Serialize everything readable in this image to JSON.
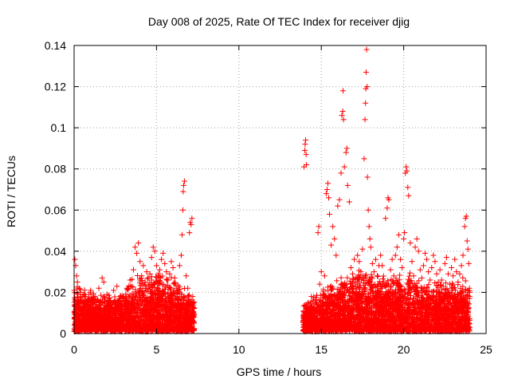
{
  "chart_data": {
    "type": "scatter",
    "title": "Day 008 of 2025, Rate Of TEC Index for receiver djig",
    "xlabel": "GPS time / hours",
    "ylabel": "ROTI / TECUs",
    "xlim": [
      0,
      25
    ],
    "ylim": [
      0,
      0.14
    ],
    "grid": true,
    "marker": "+",
    "color": "#ff0000",
    "x_ticks": [
      0,
      5,
      10,
      15,
      20,
      25
    ],
    "x_tick_labels": [
      "0",
      "5",
      "10",
      "15",
      "20",
      "25"
    ],
    "y_ticks": [
      0,
      0.02,
      0.04,
      0.06,
      0.08,
      0.1,
      0.12,
      0.14
    ],
    "y_tick_labels": [
      "0",
      "0.02",
      "0.04",
      "0.06",
      "0.08",
      "0.1",
      "0.12",
      "0.14"
    ],
    "series": [
      {
        "name": "ROTI",
        "points": [
          [
            0.05,
            0.036
          ],
          [
            0.1,
            0.033
          ],
          [
            0.15,
            0.028
          ],
          [
            0.2,
            0.025
          ],
          [
            0.3,
            0.022
          ],
          [
            0.4,
            0.02
          ],
          [
            0.5,
            0.018
          ],
          [
            0.6,
            0.016
          ],
          [
            0.7,
            0.014
          ],
          [
            0.8,
            0.015
          ],
          [
            0.9,
            0.019
          ],
          [
            1.0,
            0.021
          ],
          [
            1.2,
            0.017
          ],
          [
            1.4,
            0.013
          ],
          [
            1.5,
            0.022
          ],
          [
            1.7,
            0.027
          ],
          [
            1.8,
            0.025
          ],
          [
            2.0,
            0.019
          ],
          [
            2.2,
            0.016
          ],
          [
            2.4,
            0.021
          ],
          [
            2.6,
            0.023
          ],
          [
            2.8,
            0.018
          ],
          [
            3.0,
            0.017
          ],
          [
            3.2,
            0.022
          ],
          [
            3.4,
            0.026
          ],
          [
            3.6,
            0.031
          ],
          [
            3.7,
            0.042
          ],
          [
            3.8,
            0.039
          ],
          [
            3.9,
            0.044
          ],
          [
            4.0,
            0.035
          ],
          [
            4.1,
            0.028
          ],
          [
            4.2,
            0.033
          ],
          [
            4.3,
            0.025
          ],
          [
            4.4,
            0.03
          ],
          [
            4.5,
            0.027
          ],
          [
            4.6,
            0.029
          ],
          [
            4.7,
            0.037
          ],
          [
            4.8,
            0.042
          ],
          [
            4.9,
            0.04
          ],
          [
            5.0,
            0.033
          ],
          [
            5.1,
            0.028
          ],
          [
            5.2,
            0.031
          ],
          [
            5.3,
            0.036
          ],
          [
            5.4,
            0.039
          ],
          [
            5.5,
            0.034
          ],
          [
            5.6,
            0.03
          ],
          [
            5.7,
            0.026
          ],
          [
            5.8,
            0.029
          ],
          [
            5.9,
            0.035
          ],
          [
            6.0,
            0.032
          ],
          [
            6.1,
            0.027
          ],
          [
            6.2,
            0.022
          ],
          [
            6.3,
            0.02
          ],
          [
            6.4,
            0.033
          ],
          [
            6.5,
            0.038
          ],
          [
            6.55,
            0.048
          ],
          [
            6.6,
            0.06
          ],
          [
            6.62,
            0.069
          ],
          [
            6.65,
            0.072
          ],
          [
            6.7,
            0.074
          ],
          [
            6.8,
            0.028
          ],
          [
            6.9,
            0.022
          ],
          [
            7.0,
            0.049
          ],
          [
            7.05,
            0.054
          ],
          [
            7.1,
            0.053
          ],
          [
            7.15,
            0.056
          ],
          [
            7.2,
            0.018
          ],
          [
            0.2,
            0.006
          ],
          [
            0.5,
            0.004
          ],
          [
            0.8,
            0.008
          ],
          [
            1.1,
            0.005
          ],
          [
            1.4,
            0.007
          ],
          [
            1.7,
            0.004
          ],
          [
            2.0,
            0.006
          ],
          [
            2.3,
            0.009
          ],
          [
            2.6,
            0.005
          ],
          [
            2.9,
            0.007
          ],
          [
            3.2,
            0.006
          ],
          [
            3.5,
            0.008
          ],
          [
            3.8,
            0.01
          ],
          [
            4.1,
            0.007
          ],
          [
            4.4,
            0.009
          ],
          [
            4.7,
            0.012
          ],
          [
            5.0,
            0.01
          ],
          [
            5.3,
            0.008
          ],
          [
            5.6,
            0.011
          ],
          [
            5.9,
            0.013
          ],
          [
            6.2,
            0.009
          ],
          [
            6.5,
            0.012
          ],
          [
            6.8,
            0.007
          ],
          [
            7.1,
            0.006
          ],
          [
            13.9,
            0.006
          ],
          [
            13.95,
            0.081
          ],
          [
            14.0,
            0.089
          ],
          [
            14.02,
            0.092
          ],
          [
            14.05,
            0.094
          ],
          [
            14.08,
            0.087
          ],
          [
            14.1,
            0.082
          ],
          [
            14.2,
            0.015
          ],
          [
            14.4,
            0.018
          ],
          [
            14.6,
            0.012
          ],
          [
            14.8,
            0.049
          ],
          [
            14.85,
            0.052
          ],
          [
            14.9,
            0.024
          ],
          [
            15.0,
            0.03
          ],
          [
            15.2,
            0.028
          ],
          [
            15.3,
            0.068
          ],
          [
            15.35,
            0.07
          ],
          [
            15.4,
            0.073
          ],
          [
            15.45,
            0.066
          ],
          [
            15.5,
            0.058
          ],
          [
            15.6,
            0.043
          ],
          [
            15.7,
            0.052
          ],
          [
            15.8,
            0.046
          ],
          [
            15.9,
            0.038
          ],
          [
            16.0,
            0.062
          ],
          [
            16.1,
            0.065
          ],
          [
            16.2,
            0.078
          ],
          [
            16.25,
            0.106
          ],
          [
            16.3,
            0.108
          ],
          [
            16.32,
            0.118
          ],
          [
            16.35,
            0.104
          ],
          [
            16.4,
            0.081
          ],
          [
            16.5,
            0.088
          ],
          [
            16.55,
            0.09
          ],
          [
            16.6,
            0.072
          ],
          [
            16.7,
            0.064
          ],
          [
            16.8,
            0.032
          ],
          [
            16.9,
            0.029
          ],
          [
            17.0,
            0.036
          ],
          [
            17.1,
            0.022
          ],
          [
            17.2,
            0.038
          ],
          [
            17.3,
            0.035
          ],
          [
            17.4,
            0.03
          ],
          [
            17.5,
            0.041
          ],
          [
            17.6,
            0.085
          ],
          [
            17.65,
            0.104
          ],
          [
            17.68,
            0.112
          ],
          [
            17.7,
            0.119
          ],
          [
            17.72,
            0.127
          ],
          [
            17.75,
            0.138
          ],
          [
            17.78,
            0.12
          ],
          [
            17.8,
            0.076
          ],
          [
            17.85,
            0.06
          ],
          [
            17.9,
            0.052
          ],
          [
            17.95,
            0.046
          ],
          [
            18.0,
            0.042
          ],
          [
            18.1,
            0.034
          ],
          [
            18.2,
            0.03
          ],
          [
            18.3,
            0.036
          ],
          [
            18.4,
            0.028
          ],
          [
            18.5,
            0.033
          ],
          [
            18.6,
            0.038
          ],
          [
            18.7,
            0.033
          ],
          [
            18.8,
            0.025
          ],
          [
            18.9,
            0.056
          ],
          [
            19.0,
            0.061
          ],
          [
            19.05,
            0.066
          ],
          [
            19.1,
            0.065
          ],
          [
            19.2,
            0.031
          ],
          [
            19.3,
            0.036
          ],
          [
            19.4,
            0.028
          ],
          [
            19.5,
            0.038
          ],
          [
            19.6,
            0.042
          ],
          [
            19.7,
            0.048
          ],
          [
            19.8,
            0.036
          ],
          [
            19.9,
            0.032
          ],
          [
            20.0,
            0.046
          ],
          [
            20.05,
            0.049
          ],
          [
            20.1,
            0.078
          ],
          [
            20.15,
            0.081
          ],
          [
            20.2,
            0.079
          ],
          [
            20.25,
            0.071
          ],
          [
            20.3,
            0.067
          ],
          [
            20.4,
            0.044
          ],
          [
            20.5,
            0.035
          ],
          [
            20.6,
            0.028
          ],
          [
            20.7,
            0.042
          ],
          [
            20.8,
            0.046
          ],
          [
            20.9,
            0.04
          ],
          [
            21.0,
            0.031
          ],
          [
            21.1,
            0.027
          ],
          [
            21.2,
            0.033
          ],
          [
            21.3,
            0.039
          ],
          [
            21.4,
            0.036
          ],
          [
            21.5,
            0.03
          ],
          [
            21.6,
            0.026
          ],
          [
            21.7,
            0.032
          ],
          [
            21.8,
            0.038
          ],
          [
            21.9,
            0.035
          ],
          [
            22.0,
            0.029
          ],
          [
            22.1,
            0.025
          ],
          [
            22.2,
            0.031
          ],
          [
            22.3,
            0.026
          ],
          [
            22.4,
            0.023
          ],
          [
            22.5,
            0.034
          ],
          [
            22.6,
            0.037
          ],
          [
            22.7,
            0.029
          ],
          [
            22.8,
            0.024
          ],
          [
            22.9,
            0.032
          ],
          [
            23.0,
            0.028
          ],
          [
            23.1,
            0.036
          ],
          [
            23.2,
            0.03
          ],
          [
            23.3,
            0.025
          ],
          [
            23.4,
            0.029
          ],
          [
            23.5,
            0.033
          ],
          [
            23.6,
            0.038
          ],
          [
            23.7,
            0.052
          ],
          [
            23.75,
            0.056
          ],
          [
            23.8,
            0.057
          ],
          [
            23.85,
            0.045
          ],
          [
            23.9,
            0.041
          ],
          [
            23.95,
            0.034
          ],
          [
            24.0,
            0.02
          ],
          [
            14.3,
            0.006
          ],
          [
            14.7,
            0.004
          ],
          [
            15.1,
            0.008
          ],
          [
            15.5,
            0.006
          ],
          [
            15.9,
            0.009
          ],
          [
            16.3,
            0.007
          ],
          [
            16.7,
            0.01
          ],
          [
            17.1,
            0.008
          ],
          [
            17.5,
            0.012
          ],
          [
            17.9,
            0.009
          ],
          [
            18.3,
            0.011
          ],
          [
            18.7,
            0.013
          ],
          [
            19.1,
            0.01
          ],
          [
            19.5,
            0.012
          ],
          [
            19.9,
            0.009
          ],
          [
            20.3,
            0.014
          ],
          [
            20.7,
            0.011
          ],
          [
            21.1,
            0.013
          ],
          [
            21.5,
            0.01
          ],
          [
            21.9,
            0.012
          ],
          [
            22.3,
            0.009
          ],
          [
            22.7,
            0.011
          ],
          [
            23.1,
            0.008
          ],
          [
            23.5,
            0.01
          ],
          [
            23.9,
            0.007
          ]
        ]
      }
    ],
    "dense_bands": [
      {
        "x_start": 0.0,
        "x_end": 7.3,
        "y_low": 0.001,
        "y_high_profile": [
          [
            0,
            0.027
          ],
          [
            1,
            0.021
          ],
          [
            2,
            0.019
          ],
          [
            3,
            0.022
          ],
          [
            3.8,
            0.03
          ],
          [
            4.5,
            0.028
          ],
          [
            5,
            0.032
          ],
          [
            5.8,
            0.029
          ],
          [
            6.4,
            0.026
          ],
          [
            7.3,
            0.018
          ]
        ]
      },
      {
        "x_start": 13.9,
        "x_end": 24.0,
        "y_low": 0.001,
        "y_high_profile": [
          [
            13.9,
            0.015
          ],
          [
            14.5,
            0.018
          ],
          [
            15.5,
            0.026
          ],
          [
            16.5,
            0.029
          ],
          [
            17.5,
            0.032
          ],
          [
            18.5,
            0.03
          ],
          [
            19.5,
            0.031
          ],
          [
            20.5,
            0.03
          ],
          [
            21.5,
            0.027
          ],
          [
            22.5,
            0.026
          ],
          [
            23.5,
            0.028
          ],
          [
            24.0,
            0.024
          ]
        ]
      }
    ]
  }
}
